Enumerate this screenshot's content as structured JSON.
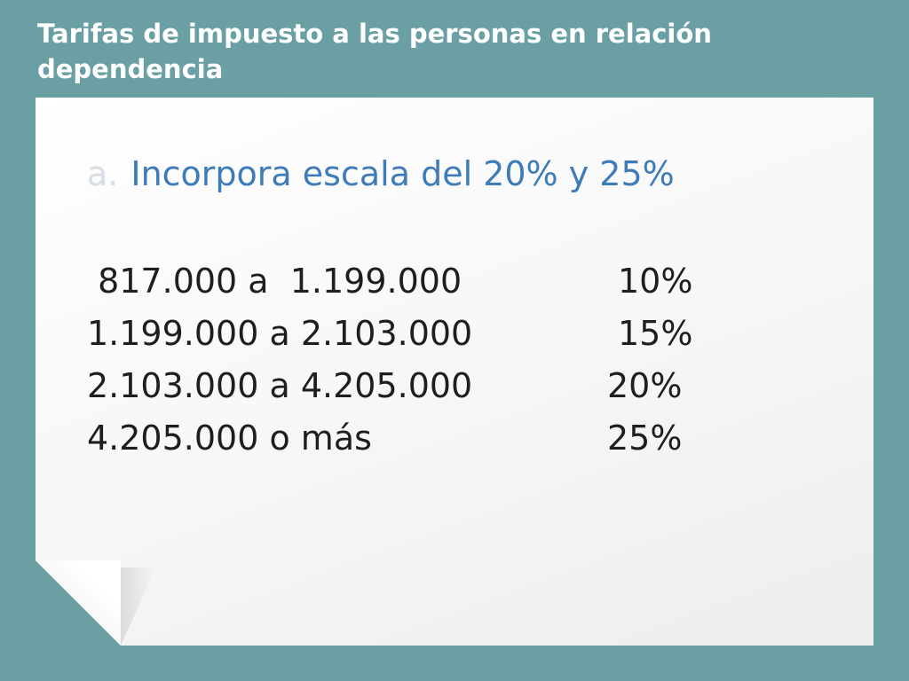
{
  "slide": {
    "title": "Tarifas de impuesto a las personas en relación dependencia",
    "subheading": {
      "marker": "a.",
      "text": "Incorpora escala del 20% y 25%"
    },
    "rates": [
      {
        "range": " 817.000 a  1.199.000",
        "rate": "10%"
      },
      {
        "range": "1.199.000 a 2.103.000",
        "rate": "15%"
      },
      {
        "range": "2.103.000 a 4.205.000",
        "rate": "20%"
      },
      {
        "range": "4.205.000 o más",
        "rate": "25%"
      }
    ]
  },
  "colors": {
    "background": "#6a9fa4",
    "title": "#ffffff",
    "accent": "#3d7cb8",
    "body_text": "#1e1e1e"
  }
}
